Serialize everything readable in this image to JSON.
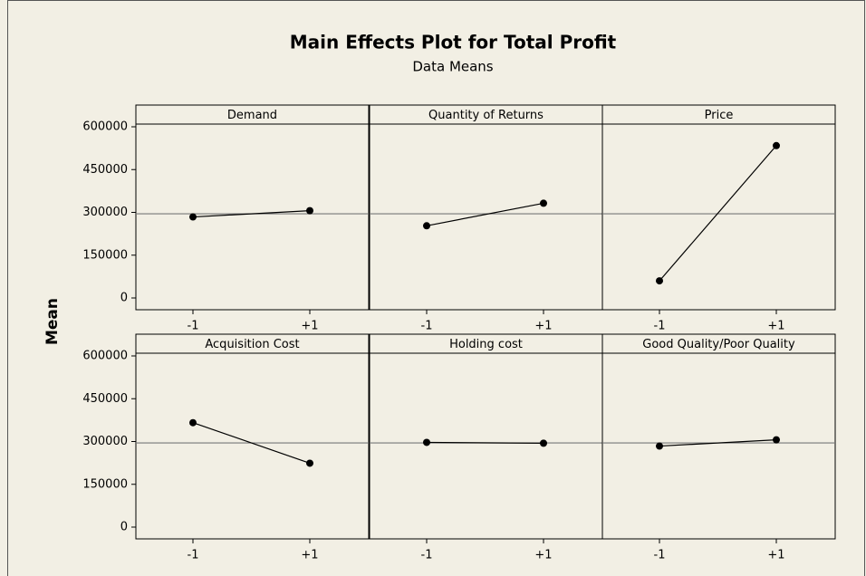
{
  "chart_data": {
    "type": "line",
    "title": "Main Effects Plot for Total Profit",
    "subtitle": "Data Means",
    "ylabel": "Mean",
    "ylim": [
      0,
      600000
    ],
    "yticks": [
      0,
      150000,
      300000,
      450000,
      600000
    ],
    "reference_line": 295000,
    "color": "#000000",
    "categories": [
      "-1",
      "+1"
    ],
    "panels": [
      {
        "title": "Demand",
        "values": [
          284000,
          306000
        ]
      },
      {
        "title": "Quantity of Returns",
        "values": [
          253000,
          332000
        ]
      },
      {
        "title": "Price",
        "values": [
          60000,
          534000
        ]
      },
      {
        "title": "Acquisition Cost",
        "values": [
          366000,
          224000
        ]
      },
      {
        "title": "Holding cost",
        "values": [
          297000,
          294000
        ]
      },
      {
        "title": "Good Quality/Poor Quality",
        "values": [
          284000,
          306000
        ]
      }
    ]
  }
}
